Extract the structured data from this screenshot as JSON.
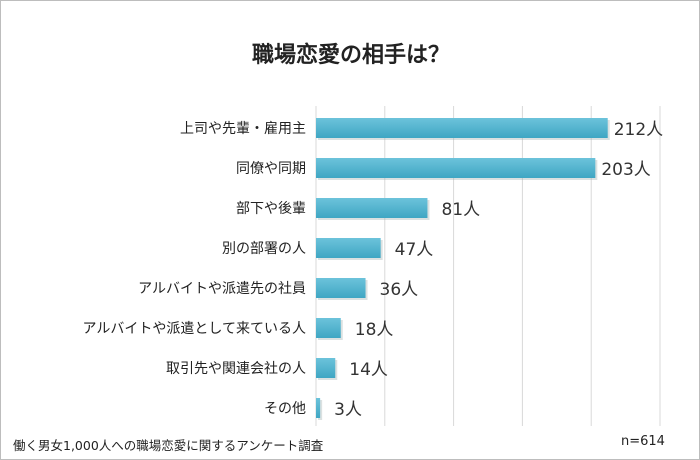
{
  "chart_data": {
    "type": "bar",
    "orientation": "horizontal",
    "title": "職場恋愛の相手は？",
    "categories": [
      "上司や先輩・雇用主",
      "同僚や同期",
      "部下や後輩",
      "別の部署の人",
      "アルバイトや派遣先の社員",
      "アルバイトや派遣として来ている人",
      "取引先や関連会社の人",
      "その他"
    ],
    "values": [
      212,
      203,
      81,
      47,
      36,
      18,
      14,
      3
    ],
    "value_suffix": "人",
    "xlim": [
      0,
      250
    ],
    "grid": true,
    "bar_color": "#4fb3cf",
    "source": "働く男女1,000人への職場恋愛に関するアンケート調査",
    "sample_size": "n=614"
  }
}
